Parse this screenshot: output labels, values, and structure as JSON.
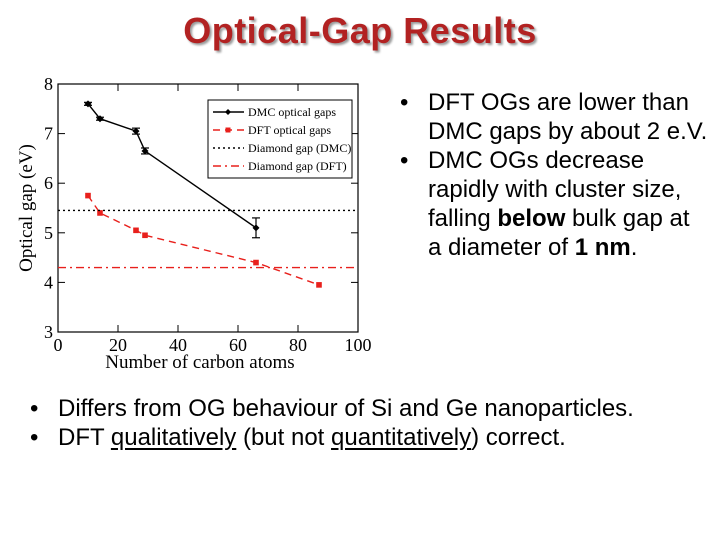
{
  "title": "Optical-Gap Results",
  "bullets_right": [
    {
      "parts": [
        {
          "text": "DFT OGs are lower than DMC gaps by about 2 e.V."
        }
      ]
    },
    {
      "parts": [
        {
          "text": "DMC OGs decrease rapidly with cluster size, falling "
        },
        {
          "text": "below",
          "bold": true
        },
        {
          "text": " bulk gap at a diameter of "
        },
        {
          "text": "1 nm",
          "bold": true
        },
        {
          "text": "."
        }
      ]
    }
  ],
  "bullets_bottom": [
    {
      "parts": [
        {
          "text": "Differs from OG behaviour of Si and Ge nanoparticles."
        }
      ]
    },
    {
      "parts": [
        {
          "text": "DFT "
        },
        {
          "text": "qualitatively",
          "underline": true
        },
        {
          "text": " (but not "
        },
        {
          "text": "quantitatively",
          "underline": true
        },
        {
          "text": ") correct."
        }
      ]
    }
  ],
  "chart_data": {
    "type": "line",
    "xlabel": "Number of carbon atoms",
    "ylabel": "Optical gap (eV)",
    "xlim": [
      0,
      100
    ],
    "ylim": [
      3,
      8
    ],
    "xticks": [
      0,
      20,
      40,
      60,
      80,
      100
    ],
    "xtick_labels": [
      "0",
      "20",
      "40",
      "60",
      "80",
      "100"
    ],
    "yticks": [
      3,
      4,
      5,
      6,
      7,
      8
    ],
    "ytick_labels": [
      "3",
      "4",
      "5",
      "6",
      "7",
      "8"
    ],
    "grid": false,
    "legend_position": "top-right",
    "series": [
      {
        "name": "DMC optical gaps",
        "color": "#000000",
        "style": "solid",
        "marker": "diamond",
        "x": [
          10,
          14,
          26,
          29,
          66
        ],
        "y": [
          7.6,
          7.3,
          7.05,
          6.65,
          5.1
        ],
        "yerr": [
          0.03,
          0.03,
          0.06,
          0.06,
          0.2
        ]
      },
      {
        "name": "DFT optical gaps",
        "color": "#e8201c",
        "style": "dashed",
        "marker": "square",
        "x": [
          10,
          14,
          26,
          29,
          66,
          87
        ],
        "y": [
          5.75,
          5.4,
          5.05,
          4.95,
          4.4,
          3.95
        ]
      },
      {
        "name": "Diamond gap (DMC)",
        "color": "#000000",
        "style": "dotted",
        "marker": "none",
        "x": [
          0,
          100
        ],
        "y": [
          5.45,
          5.45
        ]
      },
      {
        "name": "Diamond gap (DFT)",
        "color": "#e8201c",
        "style": "dashdot",
        "marker": "none",
        "x": [
          0,
          100
        ],
        "y": [
          4.3,
          4.3
        ]
      }
    ]
  }
}
